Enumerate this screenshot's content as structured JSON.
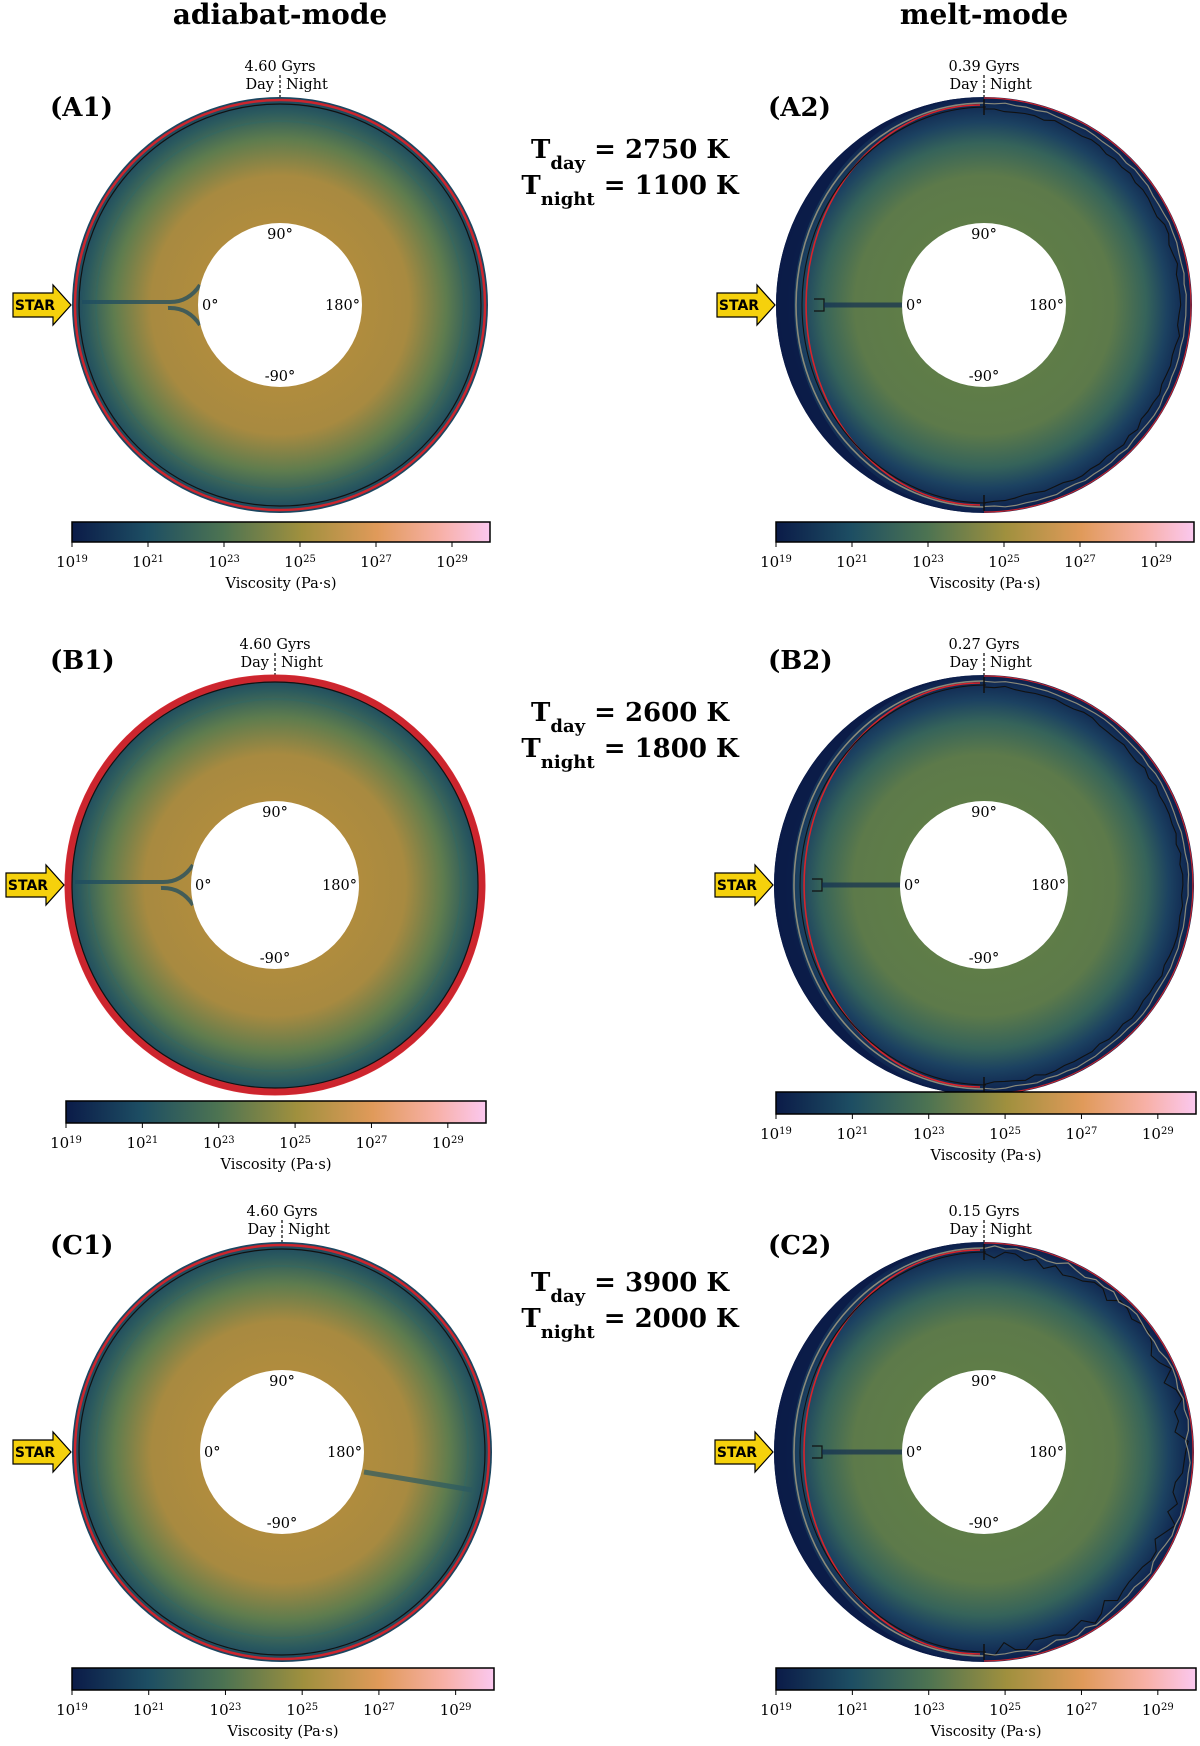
{
  "columns": [
    {
      "title": "adiabat-mode"
    },
    {
      "title": "melt-mode"
    }
  ],
  "rows": [
    {
      "t_day_label": "T",
      "t_day_sub": "day",
      "t_day_value": " = 2750 K",
      "t_night_label": "T",
      "t_night_sub": "night",
      "t_night_value": " = 1100 K",
      "panels": [
        {
          "id": "A1",
          "label": "(A1)",
          "age": "4.60 Gyrs",
          "mode": "adiabat"
        },
        {
          "id": "A2",
          "label": "(A2)",
          "age": "0.39 Gyrs",
          "mode": "melt"
        }
      ]
    },
    {
      "t_day_label": "T",
      "t_day_sub": "day",
      "t_day_value": " = 2600 K",
      "t_night_label": "T",
      "t_night_sub": "night",
      "t_night_value": " = 1800 K",
      "panels": [
        {
          "id": "B1",
          "label": "(B1)",
          "age": "4.60 Gyrs",
          "mode": "adiabat"
        },
        {
          "id": "B2",
          "label": "(B2)",
          "age": "0.27 Gyrs",
          "mode": "melt"
        }
      ]
    },
    {
      "t_day_label": "T",
      "t_day_sub": "day",
      "t_day_value": " = 3900 K",
      "t_night_label": "T",
      "t_night_sub": "night",
      "t_night_value": " = 2000 K",
      "panels": [
        {
          "id": "C1",
          "label": "(C1)",
          "age": "4.60 Gyrs",
          "mode": "adiabat"
        },
        {
          "id": "C2",
          "label": "(C2)",
          "age": "0.15 Gyrs",
          "mode": "melt"
        }
      ]
    }
  ],
  "panel_text": {
    "day": "Day",
    "night": "Night",
    "star": "STAR",
    "angle_90": "90°",
    "angle_0": "0°",
    "angle_180": "180°",
    "angle_m90": "-90°"
  },
  "colorbar": {
    "label": "Viscosity (Pa·s)",
    "ticks": [
      {
        "base": "10",
        "exp": "19"
      },
      {
        "base": "10",
        "exp": "21"
      },
      {
        "base": "10",
        "exp": "23"
      },
      {
        "base": "10",
        "exp": "25"
      },
      {
        "base": "10",
        "exp": "27"
      },
      {
        "base": "10",
        "exp": "29"
      }
    ],
    "range_exp": [
      19,
      30
    ],
    "colors": [
      "#0b1b48",
      "#1d4e63",
      "#4c7352",
      "#a0903e",
      "#e09a5a",
      "#f7b0a6",
      "#fbc8ef"
    ]
  },
  "colors": {
    "low_viscosity": "#0b1b48",
    "mid_viscosity": "#5d7c4c",
    "high_viscosity": "#b28c3c",
    "melt_contour": "#d6242b",
    "solidus_contour": "#8a8a7a",
    "black_contour": "#111111",
    "star_fill": "#f5d10c"
  }
}
